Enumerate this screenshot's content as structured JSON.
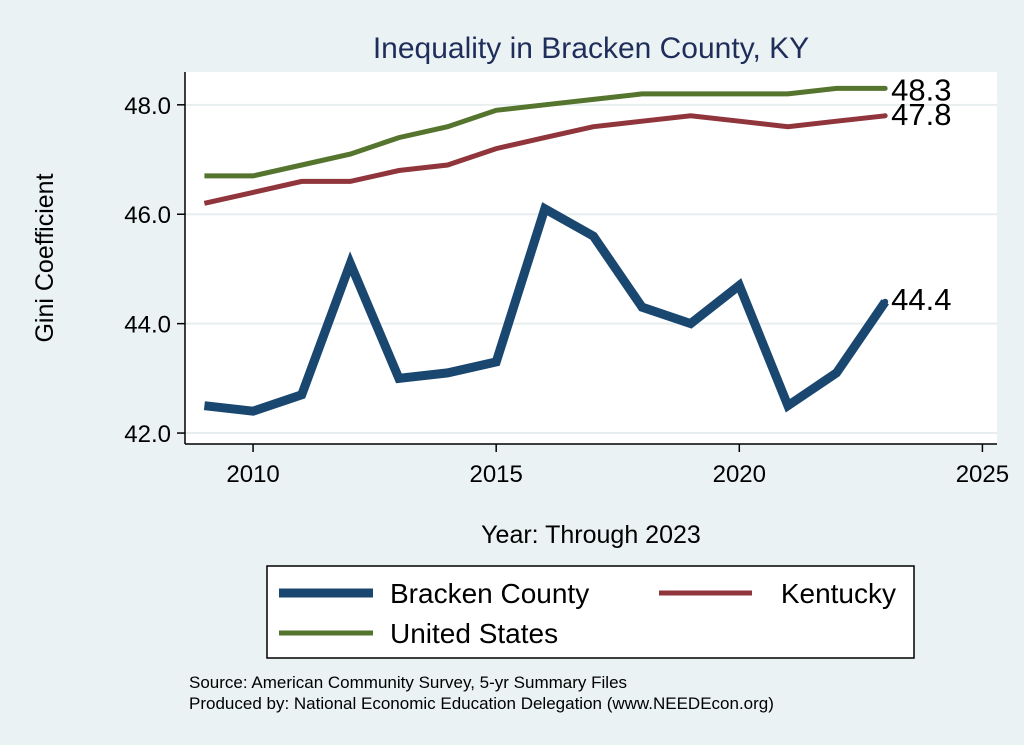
{
  "chart_data": {
    "type": "line",
    "title": "Inequality in Bracken County, KY",
    "xlabel": "Year: Through 2023",
    "ylabel": "Gini Coefficient",
    "xlim": [
      2008.6,
      2025.3
    ],
    "ylim": [
      41.8,
      48.6
    ],
    "xticks": [
      2010,
      2015,
      2020,
      2025
    ],
    "yticks": [
      42.0,
      44.0,
      46.0,
      48.0
    ],
    "ytick_labels": [
      "42.0",
      "44.0",
      "46.0",
      "48.0"
    ],
    "grid": "horizontal",
    "legend_position": "bottom",
    "x": [
      2009,
      2010,
      2011,
      2012,
      2013,
      2014,
      2015,
      2016,
      2017,
      2018,
      2019,
      2020,
      2021,
      2022,
      2023
    ],
    "series": [
      {
        "name": "Bracken County",
        "color": "#1a476f",
        "values": [
          42.5,
          42.4,
          42.7,
          45.1,
          43.0,
          43.1,
          43.3,
          46.1,
          45.6,
          44.3,
          44.0,
          44.7,
          42.5,
          43.1,
          44.4
        ],
        "end_label": "44.4"
      },
      {
        "name": "Kentucky",
        "color": "#90353b",
        "values": [
          46.2,
          46.4,
          46.6,
          46.6,
          46.8,
          46.9,
          47.2,
          47.4,
          47.6,
          47.7,
          47.8,
          47.7,
          47.6,
          47.7,
          47.8
        ],
        "end_label": "47.8"
      },
      {
        "name": "United States",
        "color": "#55752f",
        "values": [
          46.7,
          46.7,
          46.9,
          47.1,
          47.4,
          47.6,
          47.9,
          48.0,
          48.1,
          48.2,
          48.2,
          48.2,
          48.2,
          48.3,
          48.3
        ],
        "end_label": "48.3"
      }
    ]
  },
  "footer": {
    "source": "Source: American Community Survey, 5-yr Summary Files",
    "producer": "Produced by: National Economic Education Delegation (www.NEEDEcon.org)"
  }
}
